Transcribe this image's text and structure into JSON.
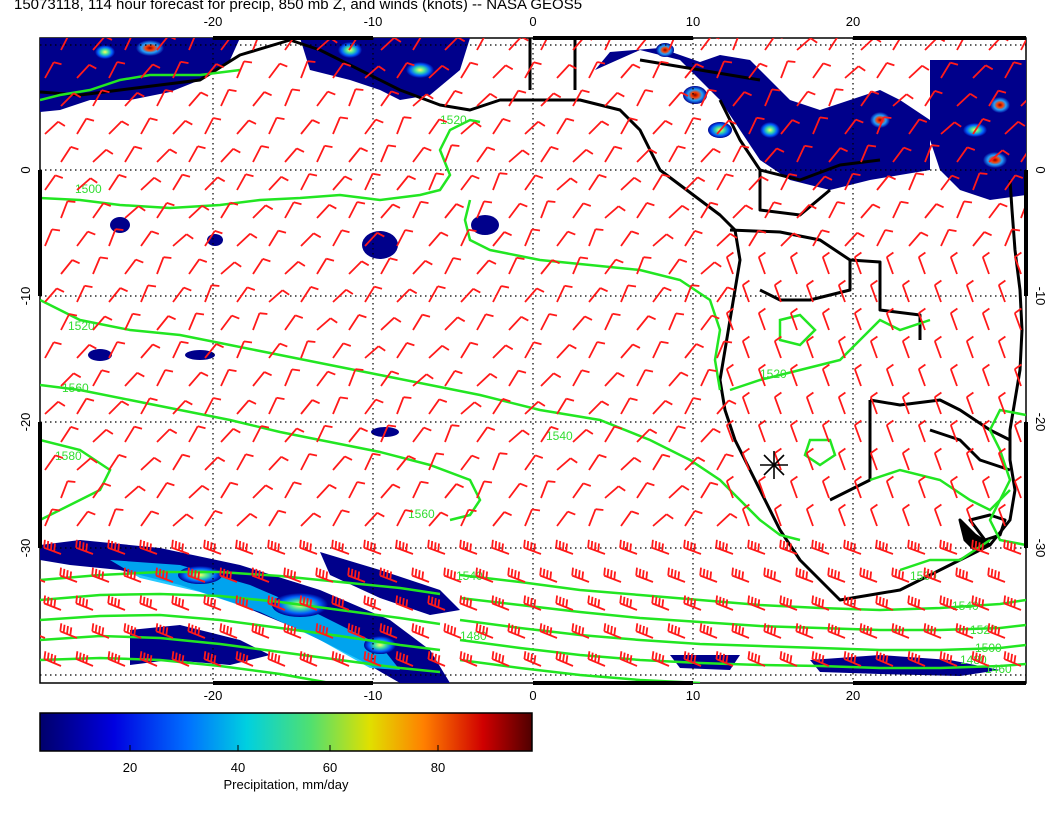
{
  "title": "15073118, 114 hour forecast for precip, 850 mb Z, and winds (knots) -- NASA GEOS5",
  "map": {
    "lon_ticks": [
      -20,
      -10,
      0,
      10,
      20
    ],
    "lat_ticks": [
      0,
      -10,
      -20,
      -30
    ],
    "lon_range": [
      -30,
      30
    ],
    "lat_range": [
      10,
      -40
    ],
    "contour_levels": [
      1460,
      1480,
      1500,
      1520,
      1540,
      1560,
      1580
    ],
    "contour_color": "#22e622",
    "barb_color": "#ff1a1a",
    "coast_color": "#000000",
    "marker_symbol": "*"
  },
  "colorbar": {
    "label": "Precipitation, mm/day",
    "ticks": [
      20,
      40,
      60,
      80
    ],
    "range": [
      0,
      100
    ],
    "colors": [
      "#00008b",
      "#0000ff",
      "#0080ff",
      "#00d8d8",
      "#50e880",
      "#e8e000",
      "#ff8000",
      "#e00000",
      "#600000"
    ]
  }
}
